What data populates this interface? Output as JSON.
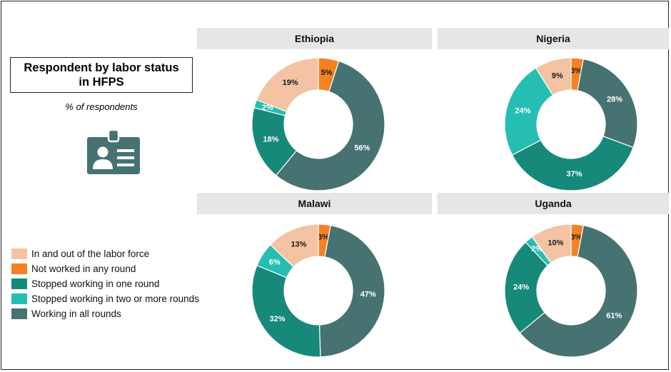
{
  "title": "Respondent by labor status in HFPS",
  "subtitle": "% of respondents",
  "colors": {
    "in_and_out": "#f4c3a3",
    "not_worked": "#f58220",
    "stopped_one": "#16897b",
    "stopped_two_plus": "#26bdb3",
    "working_all": "#467371"
  },
  "legend": [
    {
      "key": "in_and_out",
      "label": "In and out of the labor force"
    },
    {
      "key": "not_worked",
      "label": "Not worked in any round"
    },
    {
      "key": "stopped_one",
      "label": "Stopped working in one round"
    },
    {
      "key": "stopped_two_plus",
      "label": "Stopped working in two or more rounds"
    },
    {
      "key": "working_all",
      "label": "Working in all rounds"
    }
  ],
  "chart_data": [
    {
      "type": "pie",
      "country": "Ethiopia",
      "slices": [
        {
          "key": "not_worked",
          "value": 5,
          "label": "5%"
        },
        {
          "key": "working_all",
          "value": 56,
          "label": "56%"
        },
        {
          "key": "stopped_one",
          "value": 18,
          "label": "18%"
        },
        {
          "key": "stopped_two_plus",
          "value": 2,
          "label": "2%"
        },
        {
          "key": "in_and_out",
          "value": 19,
          "label": "19%"
        }
      ]
    },
    {
      "type": "pie",
      "country": "Nigeria",
      "slices": [
        {
          "key": "not_worked",
          "value": 3,
          "label": "3%"
        },
        {
          "key": "working_all",
          "value": 28,
          "label": "28%"
        },
        {
          "key": "stopped_one",
          "value": 37,
          "label": "37%"
        },
        {
          "key": "stopped_two_plus",
          "value": 24,
          "label": "24%"
        },
        {
          "key": "in_and_out",
          "value": 9,
          "label": "9%"
        }
      ]
    },
    {
      "type": "pie",
      "country": "Malawi",
      "slices": [
        {
          "key": "not_worked",
          "value": 3,
          "label": "3%"
        },
        {
          "key": "working_all",
          "value": 47,
          "label": "47%"
        },
        {
          "key": "stopped_one",
          "value": 32,
          "label": "32%"
        },
        {
          "key": "stopped_two_plus",
          "value": 6,
          "label": "6%"
        },
        {
          "key": "in_and_out",
          "value": 13,
          "label": "13%"
        }
      ]
    },
    {
      "type": "pie",
      "country": "Uganda",
      "slices": [
        {
          "key": "not_worked",
          "value": 3,
          "label": "3%"
        },
        {
          "key": "working_all",
          "value": 61,
          "label": "61%"
        },
        {
          "key": "stopped_one",
          "value": 24,
          "label": "24%"
        },
        {
          "key": "stopped_two_plus",
          "value": 2,
          "label": "2%"
        },
        {
          "key": "in_and_out",
          "value": 10,
          "label": "10%"
        }
      ]
    }
  ]
}
